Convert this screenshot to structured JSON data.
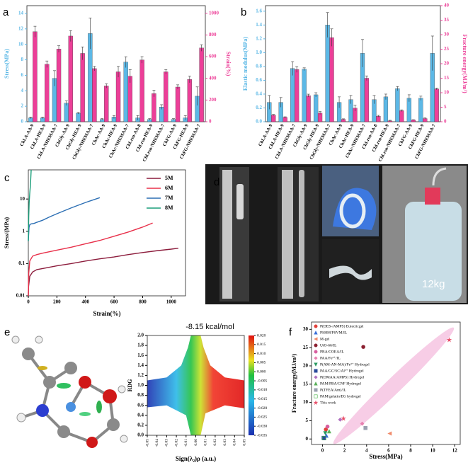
{
  "chart_data": [
    {
      "type": "bar",
      "panel_label": "a",
      "categories": [
        "ChLA-AA-9",
        "ChLA-HEA-9",
        "ChLA-NHEMAA-7",
        "ChGly-AA-9",
        "ChGly-HEA-9",
        "ChGly-NHEMAA-7",
        "ChAc-AA-9",
        "ChAc-HEA-9",
        "ChAc-NHEMAA-7",
        "ChLrsn-AA-8",
        "ChLrsn-HEA-9",
        "ChLrsn-NHEMAA-7",
        "ChFG-AA-9",
        "ChFG-HEA-9",
        "ChFG-NHEMAA-7"
      ],
      "y_label": "Stress(MPa)",
      "y2_label": "Strain(%)",
      "ylim": [
        0,
        15
      ],
      "yticks": [
        0,
        2,
        4,
        6,
        8,
        10,
        12,
        14
      ],
      "y2lim": [
        0,
        1070
      ],
      "y2ticks": [
        0,
        200,
        400,
        600,
        800,
        1000
      ],
      "series": [
        {
          "color": "#5cb8e6",
          "values": [
            0.5,
            0.5,
            5.6,
            2.4,
            1.1,
            11.4,
            0.3,
            0.6,
            7.7,
            0.5,
            0.3,
            1.9,
            0.3,
            0.5,
            3.3
          ],
          "errors": [
            0.1,
            0.1,
            1.0,
            0.3,
            0.1,
            2.0,
            0.1,
            0.2,
            0.7,
            0.3,
            0.1,
            0.3,
            0.1,
            0.3,
            1.2
          ]
        },
        {
          "color": "#ec3f98",
          "axis": "y2",
          "values": [
            830,
            530,
            670,
            790,
            630,
            490,
            330,
            460,
            420,
            570,
            260,
            460,
            320,
            390,
            680
          ],
          "errors": [
            50,
            30,
            30,
            50,
            60,
            20,
            20,
            50,
            60,
            30,
            30,
            20,
            20,
            30,
            30
          ]
        }
      ]
    },
    {
      "type": "bar",
      "panel_label": "b",
      "categories": [
        "ChLA-AA-9",
        "ChLA-HEA-9",
        "ChLA-NHEMAA-7",
        "ChGly-AA-9",
        "ChGly-HEA-9",
        "ChGly-NHEMAA-7",
        "ChAc-AA-9",
        "ChAc-HEA-9",
        "ChAc-NHEMAA-7",
        "ChLrsn-AA-8",
        "ChLrsn-HEA-9",
        "ChLrsn-NHEMAA-7",
        "ChFG-AA-9",
        "ChFG-HEA-9",
        "ChFG-NHEMAA-7"
      ],
      "y_label": "Elastic modulus(MPa)",
      "y2_label": "Fracture energy(MJ/m³)",
      "ylim": [
        0,
        1.68
      ],
      "yticks": [
        {
          "value": 0,
          "label": "0.0"
        },
        0.2,
        0.4,
        0.6,
        0.8,
        {
          "value": 1,
          "label": "1.0"
        },
        1.2,
        1.4,
        1.6
      ],
      "y2lim": [
        0,
        40
      ],
      "y2ticks": [
        0,
        5,
        10,
        15,
        20,
        25,
        30,
        35,
        40
      ],
      "series": [
        {
          "color": "#5cb8e6",
          "values": [
            0.28,
            0.28,
            0.77,
            0.76,
            0.39,
            1.4,
            0.28,
            0.32,
            0.99,
            0.32,
            0.36,
            0.48,
            0.34,
            0.34,
            0.99
          ],
          "errors": [
            0.1,
            0.07,
            0.1,
            0.02,
            0.03,
            0.18,
            0.08,
            0.06,
            0.2,
            0.06,
            0.04,
            0.03,
            0.05,
            0.03,
            0.25
          ]
        },
        {
          "color": "#ec3f98",
          "axis": "y2",
          "values": [
            2.3,
            1.5,
            18,
            9,
            3,
            29,
            0.8,
            4.7,
            15,
            1.9,
            0.3,
            3.8,
            0.6,
            1.1,
            11.3
          ],
          "errors": [
            0.2,
            0.2,
            1,
            0.5,
            0.5,
            3,
            0.2,
            1,
            0.8,
            0.3,
            0.2,
            0.3,
            0.1,
            0.2,
            0.3
          ]
        }
      ]
    },
    {
      "type": "line",
      "panel_label": "c",
      "x_label": "Strain(%)",
      "y_label": "Stress/(MPa)",
      "log_y": true,
      "xlim": [
        0,
        1100
      ],
      "xticks": [
        0,
        200,
        400,
        600,
        800,
        1000
      ],
      "ylim": [
        0.01,
        80
      ],
      "yticks": [
        0.01,
        0.1,
        1,
        10
      ],
      "legend": "upper right",
      "series": [
        {
          "name": "5M",
          "color": "#8c1c3c",
          "x": [
            0,
            2,
            10,
            30,
            60,
            100,
            200,
            300,
            400,
            500,
            600,
            700,
            800,
            900,
            1000,
            1050
          ],
          "values": [
            0.01,
            0.02,
            0.04,
            0.055,
            0.065,
            0.07,
            0.085,
            0.1,
            0.12,
            0.14,
            0.16,
            0.19,
            0.22,
            0.25,
            0.28,
            0.3
          ]
        },
        {
          "name": "6M",
          "color": "#e8304a",
          "x": [
            0,
            3,
            10,
            30,
            60,
            100,
            200,
            300,
            400,
            500,
            600,
            700,
            800,
            870
          ],
          "values": [
            0.01,
            0.05,
            0.12,
            0.17,
            0.19,
            0.21,
            0.26,
            0.32,
            0.41,
            0.52,
            0.7,
            0.95,
            1.35,
            1.8
          ]
        },
        {
          "name": "7M",
          "color": "#2c6fb4",
          "x": [
            0,
            5,
            10,
            20,
            40,
            60,
            100,
            150,
            200,
            300,
            400,
            500
          ],
          "values": [
            0.5,
            1.3,
            1.6,
            1.7,
            1.75,
            1.9,
            2.2,
            2.8,
            3.5,
            5.3,
            7.8,
            11
          ]
        },
        {
          "name": "8M",
          "color": "#1a9e7a",
          "x": [
            0,
            3,
            6,
            10,
            15,
            20
          ],
          "values": [
            0.5,
            3,
            8,
            15,
            28,
            80
          ]
        }
      ]
    },
    {
      "type": "scatter",
      "panel_label": "e",
      "title": "-8.15 kcal/mol",
      "x_label": "Sign(λ₂)ρ (a.u.)",
      "y_label": "RDG",
      "xlim": [
        -0.05,
        0.05
      ],
      "xticks": [
        -0.05,
        -0.04,
        -0.03,
        -0.02,
        -0.01,
        {
          "value": 0,
          "label": "0.00"
        },
        0.01,
        0.02,
        0.03,
        0.04,
        0.05
      ],
      "ylim": [
        0,
        2
      ],
      "yticks": [
        {
          "value": 0,
          "label": "0.0"
        },
        0.2,
        0.4,
        0.6,
        0.8,
        {
          "value": 1,
          "label": "1.0"
        },
        1.2,
        1.4,
        1.6,
        1.8,
        {
          "value": 2,
          "label": "2.0"
        }
      ],
      "colorbar_lim": [
        -0.035,
        0.02
      ],
      "colorbar_ticks": [
        {
          "value": 0.02,
          "label": "0.020"
        },
        0.015,
        {
          "value": 0.01,
          "label": "0.010"
        },
        0.005,
        {
          "value": 0,
          "label": "0.000"
        },
        -0.005,
        {
          "value": -0.01,
          "label": "-0.010"
        },
        -0.015,
        {
          "value": -0.02,
          "label": "-0.020"
        },
        -0.025,
        {
          "value": -0.03,
          "label": "-0.030"
        },
        -0.035
      ],
      "series": []
    },
    {
      "type": "scatter",
      "panel_label": "f",
      "x_label": "Stress(MPa)",
      "y_label": "Fracture energy(MJ/m³)",
      "xlim": [
        -1,
        12.5
      ],
      "xticks": [
        0,
        2,
        4,
        6,
        8,
        10,
        12
      ],
      "ylim": [
        -1.5,
        32
      ],
      "yticks": [
        0,
        5,
        10,
        15,
        20,
        25,
        30
      ],
      "legend": "upper left",
      "series": [
        {
          "name": "P(DES-/AMPS) Eutecticgel",
          "color": "#e0403a",
          "marker": "circle",
          "x": [
            0.3
          ],
          "values": [
            2.6
          ]
        },
        {
          "name": "PSHM/PSVM/IL",
          "color": "#3a6fd8",
          "marker": "triangle",
          "x": [
            0.35
          ],
          "values": [
            0.9
          ]
        },
        {
          "name": "M-gel",
          "color": "#f08a6a",
          "marker": "triangle-left",
          "x": [
            6.1
          ],
          "values": [
            1.5
          ]
        },
        {
          "name": "UiO-66/IL",
          "color": "#8b2030",
          "marker": "circle",
          "x": [
            3.7
          ],
          "values": [
            25.2
          ]
        },
        {
          "name": "PBA/COEA/IL",
          "color": "#d860a0",
          "marker": "circle",
          "x": [
            0.45
          ],
          "values": [
            3.4
          ]
        },
        {
          "name": "PAA/Fe³⁺/IL",
          "color": "#e880b0",
          "marker": "diamond",
          "x": [
            3.6
          ],
          "values": [
            4.2
          ]
        },
        {
          "name": "P(AM-AN-MA)/Fe³⁺ Hydrogel",
          "color": "#2a9a60",
          "marker": "triangle-down",
          "x": [
            0.25
          ],
          "values": [
            1.6
          ]
        },
        {
          "name": "PAA/GC/SC/Al³⁺ Hydrogel",
          "color": "#2a4a9a",
          "marker": "square",
          "x": [
            0.1
          ],
          "values": [
            0.3
          ]
        },
        {
          "name": "P(DMAA/AMPS) Hydrogel",
          "color": "#b070c0",
          "marker": "diamond",
          "x": [
            1.6
          ],
          "values": [
            5.3
          ]
        },
        {
          "name": "PAM/PBA/CNF Hydrogel",
          "color": "#5ab05a",
          "marker": "triangle",
          "x": [
            0.6
          ],
          "values": [
            2.1
          ]
        },
        {
          "name": "P(TFEA/Am)/IL",
          "color": "#9aa0b0",
          "marker": "square",
          "x": [
            3.9
          ],
          "values": [
            3.0
          ]
        },
        {
          "name": "PAM/gelatin/EG hydrogel",
          "color": "#40b040",
          "marker": "square-open",
          "x": [
            0.15
          ],
          "values": [
            0.2
          ]
        },
        {
          "name": "This work",
          "color": "#e8506a",
          "marker": "star",
          "x": [
            1.9,
            11.5
          ],
          "values": [
            5.6,
            27.1
          ]
        }
      ]
    }
  ],
  "photo": {
    "panel_label": "d",
    "caption": "12kg"
  }
}
